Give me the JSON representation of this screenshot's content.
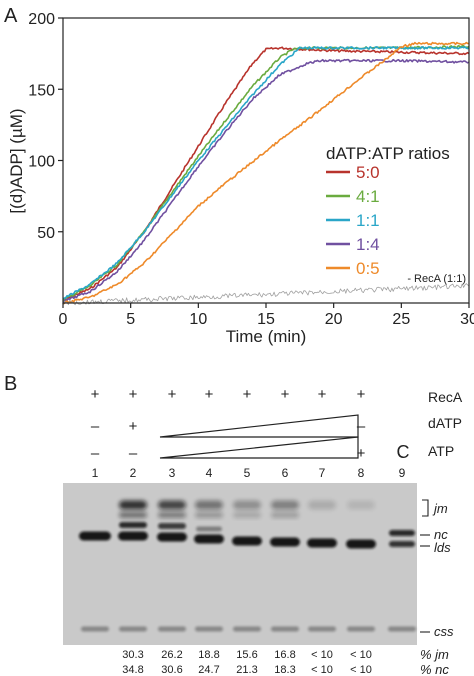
{
  "panel_a": {
    "letter": "A",
    "chart_data": {
      "type": "line",
      "title": "",
      "xlabel": "Time (min)",
      "ylabel": "[(d)ADP] (µM)",
      "xlim": [
        0,
        30
      ],
      "ylim": [
        0,
        200
      ],
      "xticks": [
        "0",
        "5",
        "10",
        "15",
        "20",
        "25",
        "30"
      ],
      "yticks": [
        "50",
        "100",
        "150",
        "200"
      ],
      "x_tick_values": [
        0,
        5,
        10,
        15,
        20,
        25,
        30
      ],
      "y_tick_values": [
        50,
        100,
        150,
        200
      ],
      "legend_title": "dATP:ATP ratios",
      "legend_position": "right",
      "grid": false,
      "series": [
        {
          "name": "5:0",
          "color": "#b8332c",
          "x": [
            0,
            2,
            4,
            6,
            8,
            10,
            12,
            14,
            15,
            16,
            18,
            20,
            25,
            30
          ],
          "y": [
            2,
            10,
            25,
            50,
            80,
            110,
            140,
            168,
            178,
            179,
            178,
            177,
            176,
            175
          ]
        },
        {
          "name": "4:1",
          "color": "#6aab3f",
          "x": [
            0,
            2,
            4,
            6,
            8,
            10,
            12,
            14,
            16,
            17,
            18,
            20,
            25,
            30
          ],
          "y": [
            2,
            12,
            27,
            50,
            77,
            103,
            128,
            152,
            172,
            178,
            179,
            179,
            179,
            180
          ]
        },
        {
          "name": "1:1",
          "color": "#2aa6c8",
          "x": [
            0,
            2,
            4,
            6,
            8,
            10,
            12,
            14,
            16,
            17.5,
            18,
            20,
            25,
            30
          ],
          "y": [
            3,
            13,
            28,
            50,
            75,
            100,
            123,
            146,
            167,
            179,
            179,
            179,
            179,
            179
          ]
        },
        {
          "name": "1:4",
          "color": "#7050a0",
          "x": [
            0,
            2,
            4,
            6,
            8,
            10,
            12,
            14,
            16,
            18,
            19,
            20,
            25,
            30
          ],
          "y": [
            1,
            8,
            22,
            44,
            70,
            96,
            120,
            143,
            160,
            168,
            170,
            170,
            170,
            169
          ]
        },
        {
          "name": "0:5",
          "color": "#ee8a2a",
          "x": [
            0,
            2,
            4,
            6,
            8,
            10,
            12,
            14,
            16,
            18,
            20,
            22,
            24,
            25,
            26,
            30
          ],
          "y": [
            0,
            4,
            13,
            28,
            48,
            68,
            84,
            99,
            114,
            128,
            143,
            158,
            172,
            180,
            182,
            182
          ]
        },
        {
          "name": "- RecA (1:1)",
          "color": "#a0a0a0",
          "x": [
            0,
            5,
            10,
            15,
            20,
            25,
            30
          ],
          "y": [
            0,
            2,
            4,
            6,
            8,
            10,
            12
          ]
        }
      ]
    }
  },
  "panel_b": {
    "letter": "B",
    "row_labels": [
      "RecA",
      "dATP",
      "ATP"
    ],
    "reca_marks": [
      "+",
      "+",
      "+",
      "+",
      "+",
      "+",
      "+",
      "+"
    ],
    "datp_marks": [
      {
        "lane": 1,
        "mark": "–"
      },
      {
        "lane": 2,
        "mark": "+"
      },
      {
        "lane": 8,
        "mark": "–"
      }
    ],
    "atp_marks": [
      {
        "lane": 1,
        "mark": "–"
      },
      {
        "lane": 2,
        "mark": "–"
      },
      {
        "lane": 8,
        "mark": "+"
      }
    ],
    "control_letter": "C",
    "lane_numbers": [
      "1",
      "2",
      "3",
      "4",
      "5",
      "6",
      "7",
      "8",
      "9"
    ],
    "gel_labels": {
      "jm": "jm",
      "nc": "nc",
      "lds": "lds",
      "css": "css"
    },
    "pct_jm_label": "% jm",
    "pct_nc_label": "% nc",
    "pct_jm": [
      "30.3",
      "26.2",
      "18.8",
      "15.6",
      "16.8",
      "< 10",
      "< 10"
    ],
    "pct_nc": [
      "34.8",
      "30.6",
      "24.7",
      "21.3",
      "18.3",
      "< 10",
      "< 10"
    ]
  }
}
